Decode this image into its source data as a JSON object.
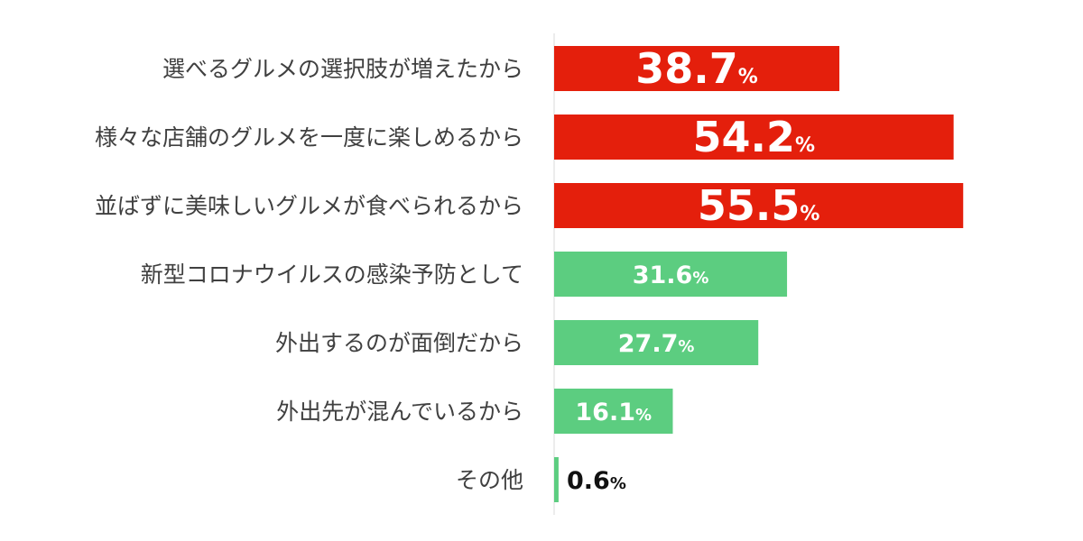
{
  "chart_data": {
    "type": "bar",
    "orientation": "horizontal",
    "categories": [
      "選べるグルメの選択肢が増えたから",
      "様々な店舗のグルメを一度に楽しめるから",
      "並ばずに美味しいグルメが食べられるから",
      "新型コロナウイルスの感染予防として",
      "外出するのが面倒だから",
      "外出先が混んでいるから",
      "その他"
    ],
    "values": [
      38.7,
      54.2,
      55.5,
      31.6,
      27.7,
      16.1,
      0.6
    ],
    "value_labels": [
      "38.7",
      "54.2",
      "55.5",
      "31.6",
      "27.7",
      "16.1",
      "0.6"
    ],
    "unit": "%",
    "highlight": [
      true,
      true,
      true,
      false,
      false,
      false,
      false
    ],
    "colors": {
      "highlight": "#e41f0c",
      "normal": "#5ccd80",
      "axis": "#d9d9d9",
      "label_text": "#404040",
      "value_text_light": "#ffffff",
      "value_text_dark": "#111111"
    },
    "xlim": [
      0,
      60
    ],
    "grid": false,
    "legend": "none",
    "title": "",
    "xlabel": "",
    "ylabel": ""
  }
}
